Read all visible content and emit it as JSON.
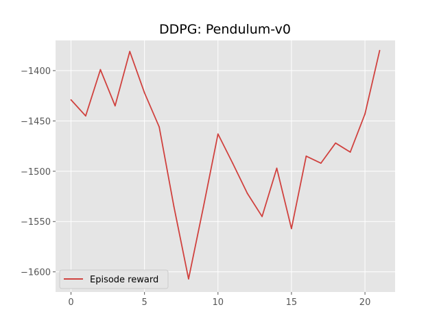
{
  "chart_data": {
    "type": "line",
    "title": "DDPG: Pendulum-v0",
    "xlabel": "",
    "ylabel": "",
    "xlim": [
      -1.05,
      22.05
    ],
    "ylim": [
      -1620,
      -1370
    ],
    "xticks": [
      0,
      5,
      10,
      15,
      20
    ],
    "yticks": [
      -1600,
      -1550,
      -1500,
      -1450,
      -1400
    ],
    "x_tick_labels": [
      "0",
      "5",
      "10",
      "15",
      "20"
    ],
    "y_tick_labels": [
      "−1600",
      "−1550",
      "−1500",
      "−1450",
      "−1400"
    ],
    "grid": true,
    "legend_position": "lower-left",
    "series": [
      {
        "name": "Episode reward",
        "color": "#d0413e",
        "x": [
          0,
          1,
          2,
          3,
          4,
          5,
          6,
          7,
          8,
          9,
          10,
          11,
          12,
          13,
          14,
          15,
          16,
          17,
          18,
          19,
          20,
          21
        ],
        "y": [
          -1429,
          -1445,
          -1399,
          -1435,
          -1381,
          -1422,
          -1456,
          -1535,
          -1607,
          -1536,
          -1463,
          -1492,
          -1522,
          -1545,
          -1497,
          -1557,
          -1485,
          -1492,
          -1472,
          -1481,
          -1443,
          -1380
        ]
      }
    ]
  },
  "colors": {
    "plot_background": "#e5e5e5",
    "grid": "#ffffff"
  }
}
